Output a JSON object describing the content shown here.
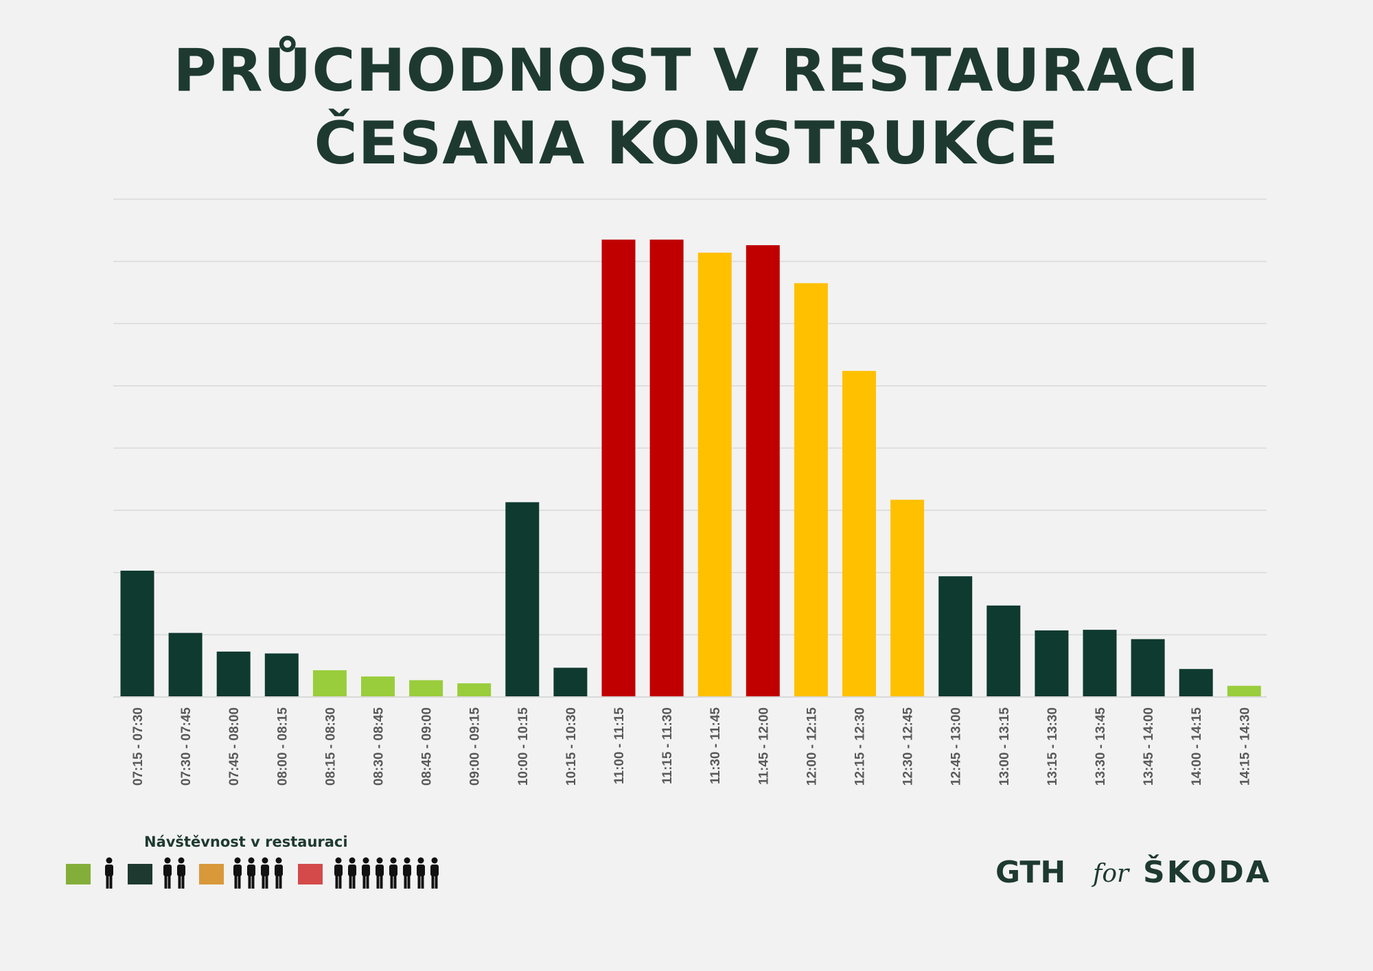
{
  "title_line1": "PRŮCHODNOST V RESTAURACI",
  "title_line2": "ČESANA KONSTRUKCE",
  "colors": {
    "dark": "#0f3a30",
    "light_green": "#9acd3c",
    "red": "#c00000",
    "yellow": "#ffc000",
    "gridline": "#d9d9d9",
    "title": "#1e3a30"
  },
  "chart_data": {
    "type": "bar",
    "categories": [
      "07:15 - 07:30",
      "07:30 - 07:45",
      "07:45 - 08:00",
      "08:00 - 08:15",
      "08:15 - 08:30",
      "08:30 - 08:45",
      "08:45 - 09:00",
      "09:00 - 09:15",
      "10:00 - 10:15",
      "10:15 - 10:30",
      "11:00 - 11:15",
      "11:15 - 11:30",
      "11:30 - 11:45",
      "11:45 - 12:00",
      "12:00 - 12:15",
      "12:15 - 12:30",
      "12:30 - 12:45",
      "12:45 - 13:00",
      "13:00 - 13:15",
      "13:15 - 13:30",
      "13:30 - 13:45",
      "13:45 - 14:00",
      "14:00 - 14:15",
      "14:15 - 14:30"
    ],
    "values": [
      2.03,
      1.03,
      0.73,
      0.7,
      0.43,
      0.33,
      0.27,
      0.22,
      3.13,
      0.47,
      7.35,
      7.35,
      7.14,
      7.26,
      6.65,
      5.24,
      3.17,
      1.94,
      1.47,
      1.07,
      1.08,
      0.93,
      0.45,
      0.18
    ],
    "bar_colors": [
      "dark",
      "dark",
      "dark",
      "dark",
      "light_green",
      "light_green",
      "light_green",
      "light_green",
      "dark",
      "dark",
      "red",
      "red",
      "yellow",
      "red",
      "yellow",
      "yellow",
      "yellow",
      "dark",
      "dark",
      "dark",
      "dark",
      "dark",
      "dark",
      "light_green"
    ],
    "ylim": [
      0,
      8
    ],
    "gridlines": [
      1,
      2,
      3,
      4,
      5,
      6,
      7,
      8
    ],
    "y_tick_labels_shown": false,
    "legend_placement": "bottom-left"
  },
  "legend": {
    "title": "Návštěvnost v restauraci",
    "items": [
      {
        "color": "#84ae3a",
        "people": 1
      },
      {
        "color": "#1e3a30",
        "people": 2
      },
      {
        "color": "#d9983a",
        "people": 4
      },
      {
        "color": "#d44a4a",
        "people": 8
      }
    ]
  },
  "branding": {
    "gth": "GTH",
    "for": "for",
    "skoda": "ŠKODA"
  }
}
